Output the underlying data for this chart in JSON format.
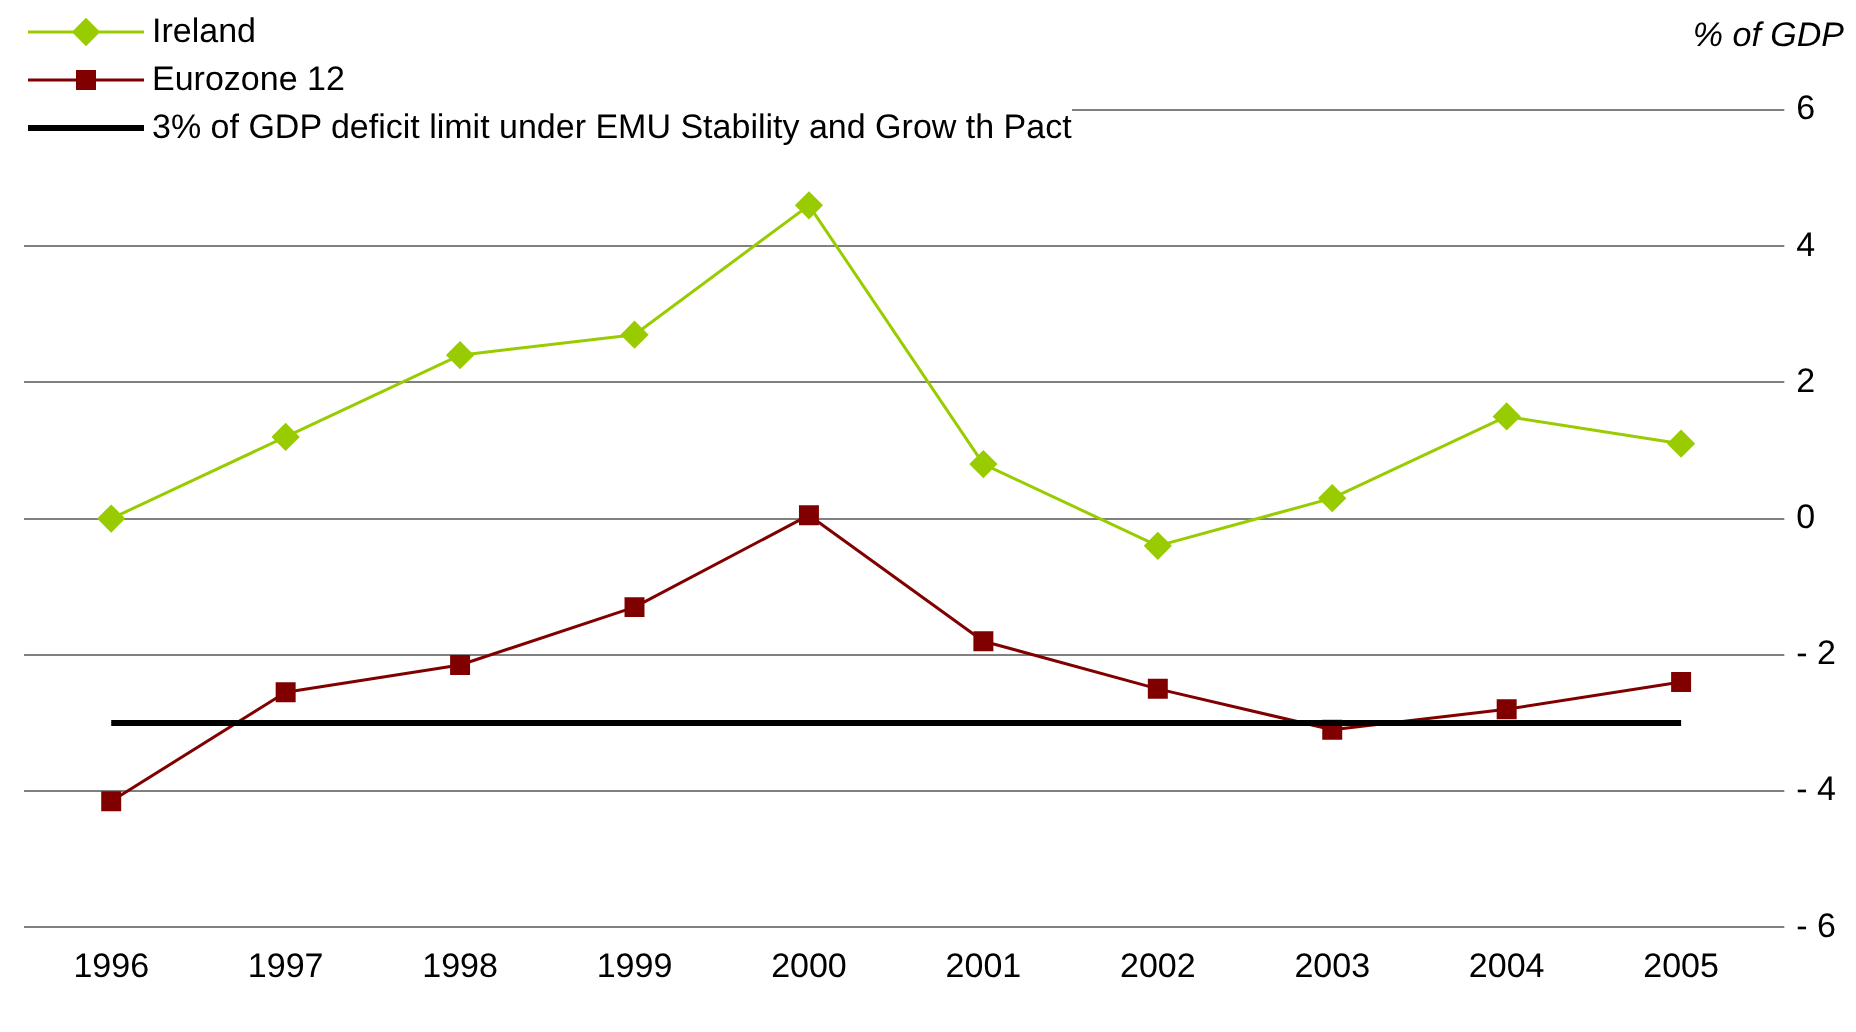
{
  "chart_data": {
    "type": "line",
    "ylabel": "% of GDP",
    "categories": [
      "1996",
      "1997",
      "1998",
      "1999",
      "2000",
      "2001",
      "2002",
      "2003",
      "2004",
      "2005"
    ],
    "series": [
      {
        "name": "Ireland",
        "color": "#99cc00",
        "marker": "diamond",
        "values": [
          0.0,
          1.2,
          2.4,
          2.7,
          4.6,
          0.8,
          -0.4,
          0.3,
          1.5,
          1.1
        ]
      },
      {
        "name": "Eurozone 12",
        "color": "#800000",
        "marker": "square",
        "values": [
          -4.15,
          -2.55,
          -2.15,
          -1.3,
          0.05,
          -1.8,
          -2.5,
          -3.1,
          -2.8,
          -2.4
        ]
      }
    ],
    "ref_lines": [
      {
        "axis": "y",
        "value": -3,
        "label": "3% of GDP deficit limit under EMU Stability and Grow th Pact",
        "color": "#000000"
      }
    ],
    "ylim": [
      -6,
      6
    ],
    "yticks": [
      {
        "value": -6,
        "label": "- 6"
      },
      {
        "value": -4,
        "label": "- 4"
      },
      {
        "value": -2,
        "label": "- 2"
      },
      0,
      2,
      4,
      6
    ],
    "grid": "y",
    "legend": "top left",
    "line_style": "solid"
  }
}
